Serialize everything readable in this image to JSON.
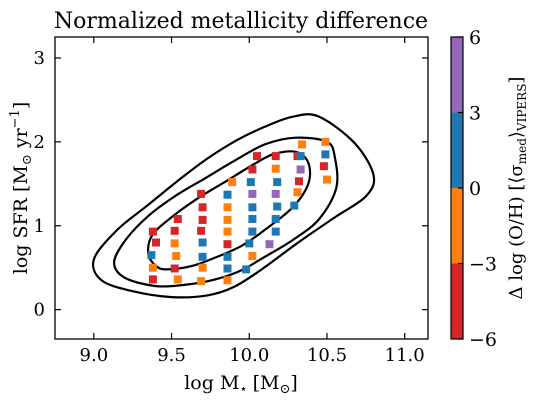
{
  "chart_data": {
    "type": "scatter",
    "title": "Normalized metallicity difference",
    "xlabel": {
      "main": "log M",
      "sub": "⋆",
      "unit": "[M",
      "unit_sub": "⊙",
      "close": "]"
    },
    "ylabel": {
      "main": "log SFR [M",
      "sub": "⊙",
      "unit": " yr",
      "sup": "−1",
      "close": "]"
    },
    "xlim": [
      8.75,
      11.15
    ],
    "ylim": [
      -0.35,
      3.25
    ],
    "xticks": [
      9.0,
      9.5,
      10.0,
      10.5,
      11.0
    ],
    "xtick_labels": [
      "9.0",
      "9.5",
      "10.0",
      "10.5",
      "11.0"
    ],
    "yticks": [
      0,
      1,
      2,
      3
    ],
    "ytick_labels": [
      "0",
      "1",
      "2",
      "3"
    ],
    "colorbar": {
      "label": {
        "main": "Δ log (O/H) [⟨σ",
        "sub": "med",
        "close": "⟩",
        "sub2": "VIPERS",
        "end": "]"
      },
      "range": [
        -6,
        6
      ],
      "ticks": [
        -6,
        -3,
        0,
        3,
        6
      ],
      "tick_labels": [
        "−6",
        "−3",
        "0",
        "3",
        "6"
      ],
      "bins": [
        {
          "from": -6,
          "to": -3,
          "color": "#d62728"
        },
        {
          "from": -3,
          "to": 0,
          "color": "#ff7f0e"
        },
        {
          "from": 0,
          "to": 3,
          "color": "#1f77b4"
        },
        {
          "from": 3,
          "to": 6,
          "color": "#9467bd"
        }
      ]
    },
    "contours": [
      {
        "level": "inner",
        "points": [
          [
            9.47,
            0.48
          ],
          [
            9.63,
            0.52
          ],
          [
            9.78,
            0.62
          ],
          [
            9.95,
            0.76
          ],
          [
            10.1,
            0.95
          ],
          [
            10.28,
            1.22
          ],
          [
            10.38,
            1.5
          ],
          [
            10.38,
            1.75
          ],
          [
            10.3,
            1.88
          ],
          [
            10.15,
            1.85
          ],
          [
            10.0,
            1.7
          ],
          [
            9.85,
            1.53
          ],
          [
            9.68,
            1.34
          ],
          [
            9.52,
            1.13
          ],
          [
            9.38,
            0.9
          ],
          [
            9.35,
            0.67
          ],
          [
            9.4,
            0.52
          ],
          [
            9.47,
            0.48
          ]
        ]
      },
      {
        "level": "middle",
        "points": [
          [
            9.2,
            0.38
          ],
          [
            9.4,
            0.28
          ],
          [
            9.6,
            0.3
          ],
          [
            9.78,
            0.36
          ],
          [
            9.95,
            0.47
          ],
          [
            10.1,
            0.63
          ],
          [
            10.28,
            0.83
          ],
          [
            10.45,
            1.08
          ],
          [
            10.56,
            1.45
          ],
          [
            10.55,
            1.82
          ],
          [
            10.5,
            2.0
          ],
          [
            10.3,
            2.05
          ],
          [
            10.1,
            1.97
          ],
          [
            9.9,
            1.77
          ],
          [
            9.72,
            1.57
          ],
          [
            9.52,
            1.35
          ],
          [
            9.34,
            1.1
          ],
          [
            9.2,
            0.82
          ],
          [
            9.13,
            0.56
          ],
          [
            9.2,
            0.38
          ]
        ]
      },
      {
        "level": "outer",
        "points": [
          [
            9.05,
            0.35
          ],
          [
            9.25,
            0.22
          ],
          [
            9.5,
            0.15
          ],
          [
            9.73,
            0.17
          ],
          [
            9.9,
            0.27
          ],
          [
            10.08,
            0.48
          ],
          [
            10.3,
            0.78
          ],
          [
            10.55,
            1.1
          ],
          [
            10.75,
            1.35
          ],
          [
            10.8,
            1.6
          ],
          [
            10.68,
            1.98
          ],
          [
            10.45,
            2.3
          ],
          [
            10.28,
            2.3
          ],
          [
            10.1,
            2.18
          ],
          [
            9.92,
            2.02
          ],
          [
            9.73,
            1.8
          ],
          [
            9.55,
            1.55
          ],
          [
            9.35,
            1.25
          ],
          [
            9.15,
            0.95
          ],
          [
            9.0,
            0.6
          ],
          [
            9.05,
            0.35
          ]
        ]
      }
    ],
    "points": [
      {
        "x": 9.38,
        "y": 0.93,
        "v": -4.5
      },
      {
        "x": 9.4,
        "y": 0.8,
        "v": -4.2
      },
      {
        "x": 9.37,
        "y": 0.65,
        "v": 1.5
      },
      {
        "x": 9.38,
        "y": 0.5,
        "v": -1.5
      },
      {
        "x": 9.38,
        "y": 0.36,
        "v": -4.0
      },
      {
        "x": 9.54,
        "y": 1.08,
        "v": -4.5
      },
      {
        "x": 9.52,
        "y": 0.94,
        "v": -4.2
      },
      {
        "x": 9.52,
        "y": 0.79,
        "v": -1.4
      },
      {
        "x": 9.53,
        "y": 0.64,
        "v": -1.5
      },
      {
        "x": 9.52,
        "y": 0.49,
        "v": -4.0
      },
      {
        "x": 9.54,
        "y": 0.36,
        "v": -1.5
      },
      {
        "x": 9.69,
        "y": 1.38,
        "v": -4.6
      },
      {
        "x": 9.7,
        "y": 1.22,
        "v": -4.0
      },
      {
        "x": 9.7,
        "y": 1.07,
        "v": -4.2
      },
      {
        "x": 9.69,
        "y": 0.94,
        "v": -4.0
      },
      {
        "x": 9.7,
        "y": 0.8,
        "v": 1.4
      },
      {
        "x": 9.7,
        "y": 0.63,
        "v": 1.5
      },
      {
        "x": 9.7,
        "y": 0.5,
        "v": -1.4
      },
      {
        "x": 9.69,
        "y": 0.34,
        "v": -1.5
      },
      {
        "x": 9.86,
        "y": 1.37,
        "v": 1.5
      },
      {
        "x": 9.86,
        "y": 1.22,
        "v": -1.5
      },
      {
        "x": 9.86,
        "y": 1.07,
        "v": -1.4
      },
      {
        "x": 9.86,
        "y": 0.93,
        "v": -1.5
      },
      {
        "x": 9.86,
        "y": 0.78,
        "v": -4.0
      },
      {
        "x": 9.86,
        "y": 0.63,
        "v": 1.4
      },
      {
        "x": 9.86,
        "y": 0.49,
        "v": 1.5
      },
      {
        "x": 9.86,
        "y": 0.35,
        "v": -1.5
      },
      {
        "x": 9.89,
        "y": 1.52,
        "v": -1.4
      },
      {
        "x": 10.02,
        "y": 1.67,
        "v": -4.2
      },
      {
        "x": 10.01,
        "y": 1.52,
        "v": 1.5
      },
      {
        "x": 10.02,
        "y": 1.38,
        "v": 4.5
      },
      {
        "x": 10.02,
        "y": 1.22,
        "v": 1.4
      },
      {
        "x": 10.02,
        "y": 1.08,
        "v": 1.4
      },
      {
        "x": 10.02,
        "y": 0.93,
        "v": 1.5
      },
      {
        "x": 10.0,
        "y": 0.79,
        "v": 1.4
      },
      {
        "x": 10.02,
        "y": 0.64,
        "v": -1.5
      },
      {
        "x": 9.98,
        "y": 0.48,
        "v": 1.5
      },
      {
        "x": 10.05,
        "y": 1.83,
        "v": -4.5
      },
      {
        "x": 10.17,
        "y": 1.83,
        "v": -4.4
      },
      {
        "x": 10.17,
        "y": 1.68,
        "v": -1.5
      },
      {
        "x": 10.18,
        "y": 1.52,
        "v": 1.4
      },
      {
        "x": 10.17,
        "y": 1.38,
        "v": 4.4
      },
      {
        "x": 10.18,
        "y": 1.23,
        "v": 1.5
      },
      {
        "x": 10.17,
        "y": 1.08,
        "v": 1.4
      },
      {
        "x": 10.17,
        "y": 0.93,
        "v": 1.5
      },
      {
        "x": 10.13,
        "y": 0.78,
        "v": 4.5
      },
      {
        "x": 10.31,
        "y": 1.83,
        "v": -4.2
      },
      {
        "x": 10.33,
        "y": 1.67,
        "v": 4.5
      },
      {
        "x": 10.32,
        "y": 1.53,
        "v": -4.0
      },
      {
        "x": 10.31,
        "y": 1.4,
        "v": -1.4
      },
      {
        "x": 10.29,
        "y": 1.24,
        "v": 1.4
      },
      {
        "x": 10.34,
        "y": 1.97,
        "v": -1.5
      },
      {
        "x": 10.33,
        "y": 1.83,
        "v": 1.4
      },
      {
        "x": 10.49,
        "y": 2.0,
        "v": -1.5
      },
      {
        "x": 10.49,
        "y": 1.85,
        "v": 1.4
      },
      {
        "x": 10.48,
        "y": 1.71,
        "v": -4.2
      },
      {
        "x": 10.5,
        "y": 1.55,
        "v": -1.5
      }
    ]
  }
}
